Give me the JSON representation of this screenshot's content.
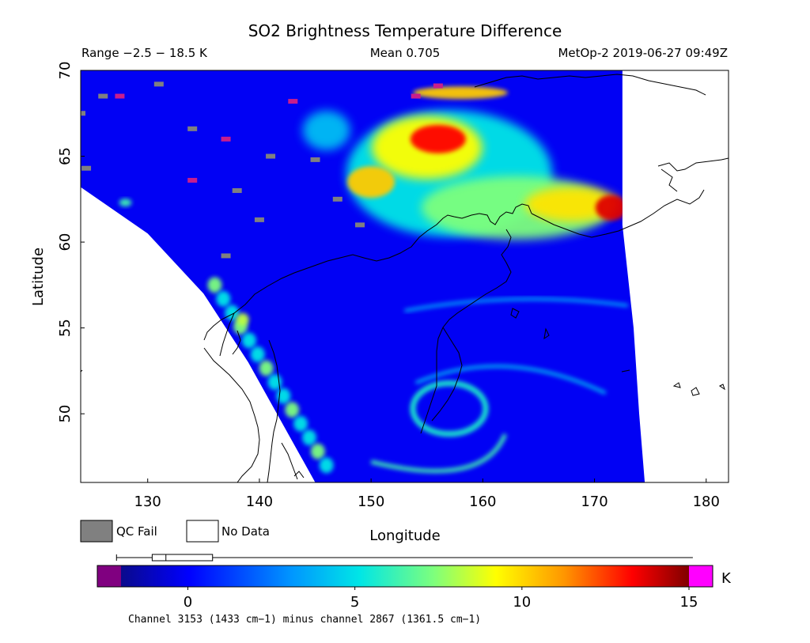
{
  "chart_data": {
    "type": "heatmap",
    "title": "SO2 Brightness Temperature Difference",
    "range_text": "Range −2.5 − 18.5 K",
    "mean_text": "Mean 0.705",
    "satellite_text": "MetOp-2 2019-06-27 09:49Z",
    "xlabel": "Longitude",
    "ylabel": "Latitude",
    "xlim": [
      124,
      182
    ],
    "ylim": [
      46,
      70
    ],
    "xticks": [
      130,
      140,
      150,
      160,
      170,
      180
    ],
    "yticks": [
      50,
      55,
      60,
      65,
      70
    ],
    "colorbar": {
      "ticks": [
        0,
        5,
        10,
        15
      ],
      "range": [
        -2,
        15
      ],
      "unit": "K",
      "under_color": "#800080",
      "over_color": "#ff00ff",
      "boxplot": {
        "whisker_low": -2.5,
        "q1": -1.2,
        "median": -0.7,
        "q3": 1.0,
        "whisker_high": 18.5
      }
    },
    "caption": "Channel 3153 (1433 cm−1) minus channel 2867 (1361.5 cm−1)",
    "legend": [
      {
        "label": "QC Fail",
        "color": "#808080"
      },
      {
        "label": "No Data",
        "color": "#ffffff"
      }
    ],
    "features": [
      {
        "name": "plume-north",
        "lon": 155,
        "lat": 65.5,
        "peak_k": 13
      },
      {
        "name": "plume-east",
        "lon": 171,
        "lat": 62,
        "peak_k": 14
      },
      {
        "name": "plume-central",
        "lon": 158,
        "lat": 63.5,
        "peak_k": 10
      },
      {
        "name": "swirl",
        "lon": 157,
        "lat": 50,
        "peak_k": 7
      },
      {
        "name": "west-edge-band",
        "lon": 138,
        "lat": 55,
        "peak_k": 6
      }
    ],
    "swath_edges": {
      "west": [
        [
          124,
          63.2
        ],
        [
          130,
          60.5
        ],
        [
          135,
          57
        ],
        [
          139,
          53
        ],
        [
          142,
          49.5
        ],
        [
          145,
          46
        ]
      ],
      "east": [
        [
          172.5,
          70
        ],
        [
          172.5,
          61
        ],
        [
          173.5,
          55
        ],
        [
          174,
          50
        ],
        [
          174.5,
          46
        ]
      ]
    },
    "qc_fail_pixels": [
      [
        126,
        68.5
      ],
      [
        124,
        67.5
      ],
      [
        131,
        69.2
      ],
      [
        124.5,
        64.3
      ],
      [
        134,
        66.6
      ],
      [
        141,
        65
      ],
      [
        138,
        63
      ],
      [
        145,
        64.8
      ],
      [
        140,
        61.3
      ],
      [
        137,
        59.2
      ],
      [
        147,
        62.5
      ],
      [
        149,
        61
      ]
    ],
    "magenta_pixels": [
      [
        127.5,
        68.5
      ],
      [
        134,
        63.6
      ],
      [
        137,
        66
      ],
      [
        143,
        68.2
      ],
      [
        154,
        68.5
      ],
      [
        156,
        69.1
      ]
    ]
  }
}
